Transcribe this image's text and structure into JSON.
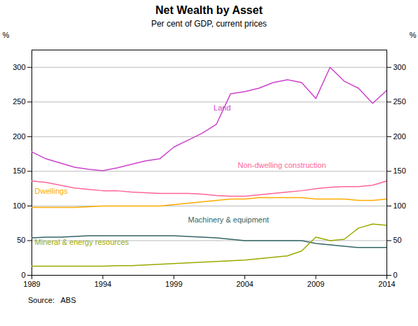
{
  "chart_data": {
    "type": "line",
    "title": "Net Wealth by Asset",
    "subtitle": "Per cent of GDP, current prices",
    "ylabel": "%",
    "y2label": "%",
    "source": "Source:   ABS",
    "x": [
      1989,
      1990,
      1991,
      1992,
      1993,
      1994,
      1995,
      1996,
      1997,
      1998,
      1999,
      2000,
      2001,
      2002,
      2003,
      2004,
      2005,
      2006,
      2007,
      2008,
      2009,
      2010,
      2011,
      2012,
      2013,
      2014
    ],
    "series": [
      {
        "name": "Land",
        "color": "#CC44CC",
        "values": [
          178,
          168,
          162,
          156,
          153,
          151,
          155,
          160,
          165,
          168,
          185,
          195,
          205,
          218,
          262,
          265,
          270,
          278,
          282,
          278,
          255,
          300,
          280,
          270,
          248,
          267
        ]
      },
      {
        "name": "Non-dwelling construction",
        "color": "#FF6699",
        "values": [
          136,
          134,
          130,
          126,
          124,
          122,
          122,
          120,
          119,
          118,
          118,
          118,
          117,
          115,
          114,
          114,
          116,
          118,
          120,
          122,
          125,
          127,
          128,
          128,
          130,
          136
        ]
      },
      {
        "name": "Dwellings",
        "color": "#FFAA00",
        "values": [
          98,
          98,
          98,
          98,
          99,
          100,
          100,
          100,
          100,
          100,
          102,
          104,
          106,
          108,
          110,
          110,
          112,
          112,
          112,
          112,
          110,
          110,
          110,
          108,
          108,
          110
        ]
      },
      {
        "name": "Machinery & equipment",
        "color": "#336666",
        "values": [
          54,
          55,
          55,
          56,
          57,
          57,
          57,
          57,
          57,
          57,
          57,
          56,
          55,
          54,
          52,
          50,
          50,
          50,
          50,
          50,
          46,
          44,
          42,
          40,
          40,
          40
        ]
      },
      {
        "name": "Mineral & energy resources",
        "color": "#99AA00",
        "values": [
          13,
          13,
          13,
          13,
          13,
          13,
          14,
          14,
          15,
          16,
          17,
          18,
          19,
          20,
          21,
          22,
          24,
          26,
          28,
          35,
          55,
          50,
          52,
          68,
          74,
          72
        ]
      }
    ],
    "annotations": [
      {
        "text": "Land",
        "x": 2001.8,
        "y": 238
      },
      {
        "text": "Non-dwelling construction",
        "x": 2003.5,
        "y": 155
      },
      {
        "text": "Dwellings",
        "x": 1989.2,
        "y": 118
      },
      {
        "text": "Machinery & equipment",
        "x": 2000.0,
        "y": 76
      },
      {
        "text": "Mineral & energy resources",
        "x": 1989.2,
        "y": 44
      }
    ],
    "xlim": [
      1989,
      2014
    ],
    "xticks": [
      1989,
      1994,
      1999,
      2004,
      2009,
      2014
    ],
    "ylim": [
      0,
      325
    ],
    "yticks": [
      0,
      50,
      100,
      150,
      200,
      250,
      300
    ],
    "y2lim": [
      0,
      325
    ],
    "y2ticks": [
      0,
      50,
      100,
      150,
      200,
      250,
      300
    ],
    "grid": true
  }
}
